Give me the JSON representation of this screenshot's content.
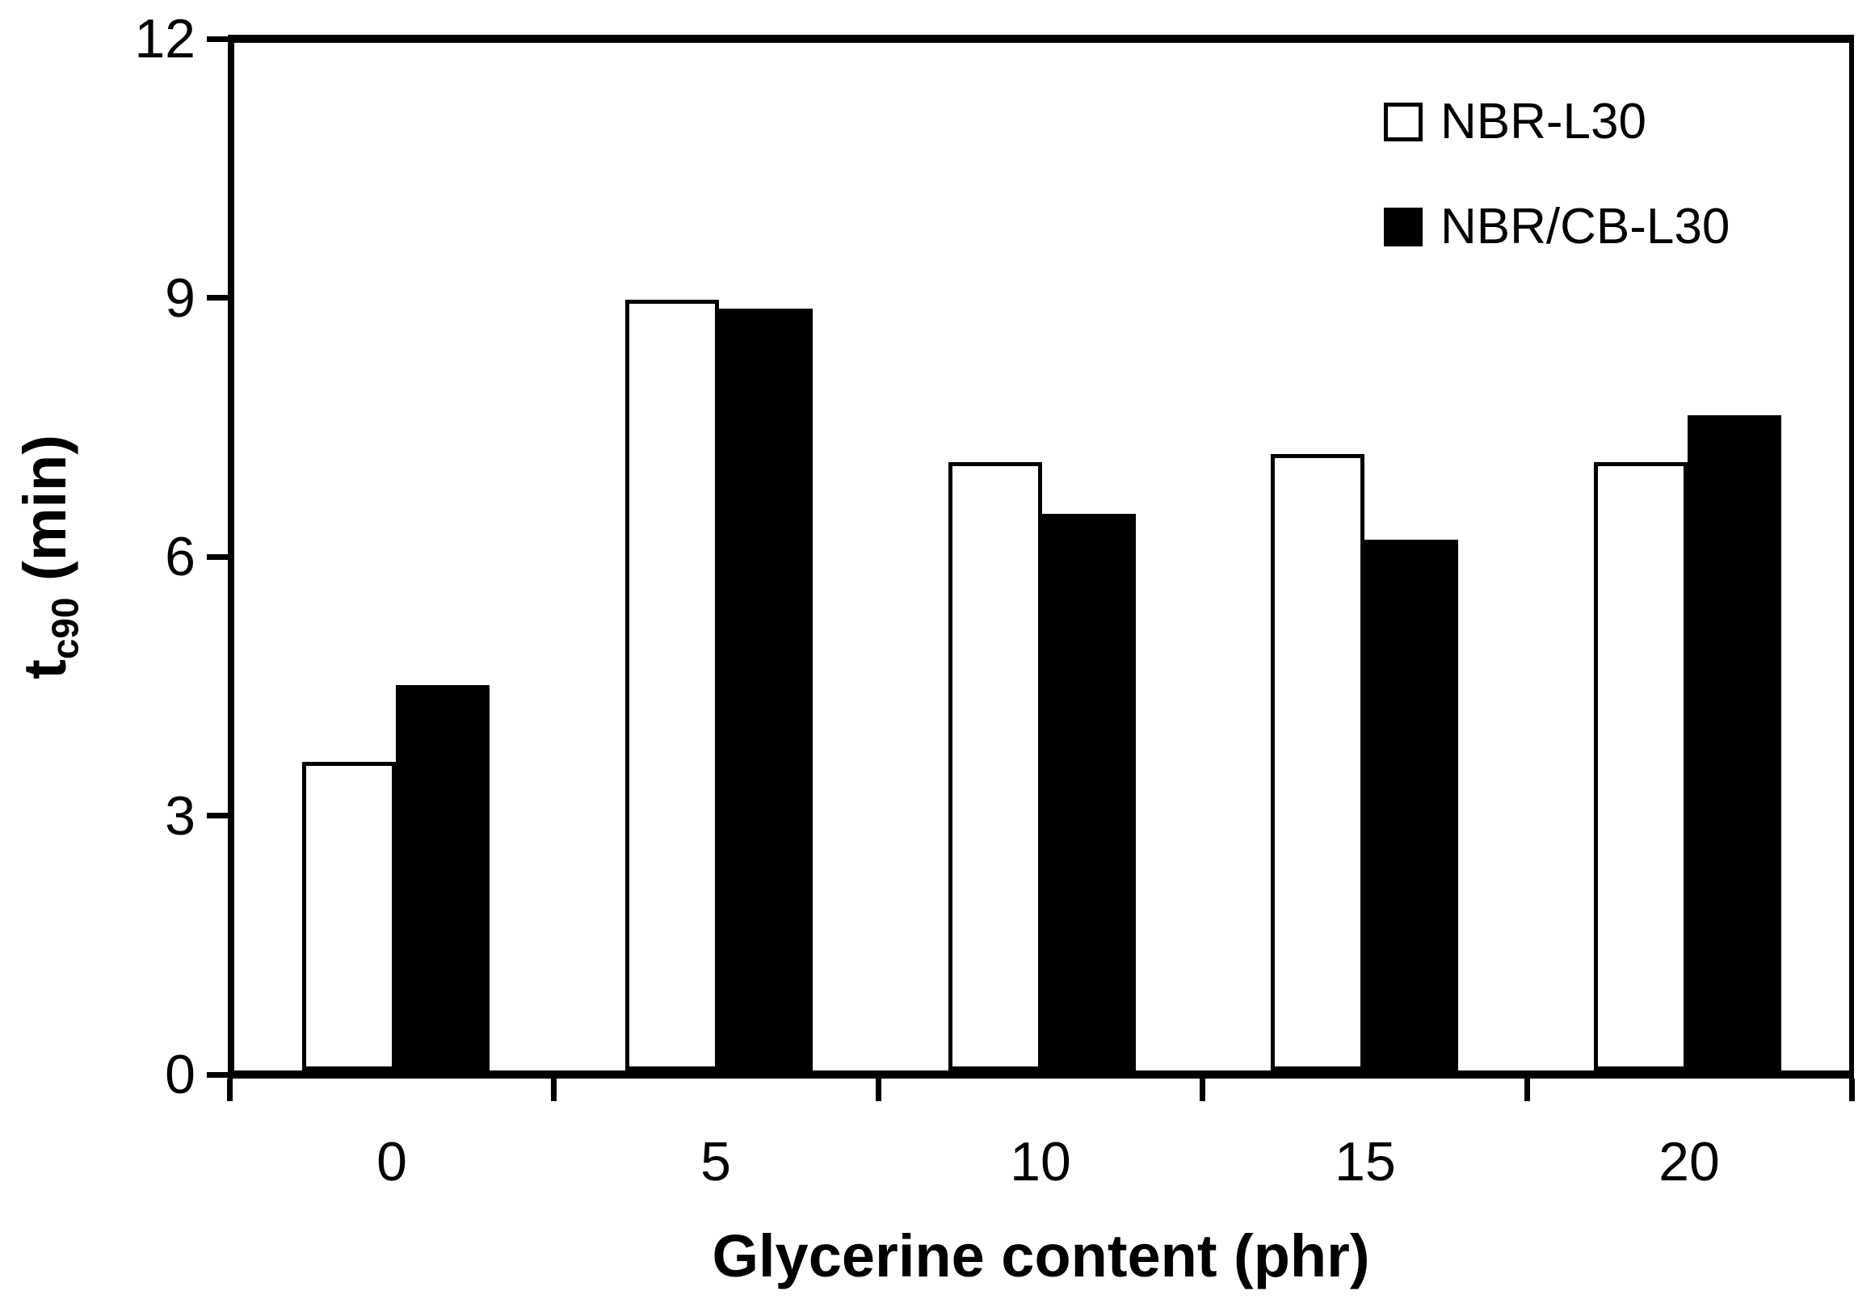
{
  "figure": {
    "background": "#ffffff",
    "frame_color": "#000000"
  },
  "legend": {
    "items": [
      {
        "label": "NBR-L30",
        "fill": "#ffffff"
      },
      {
        "label": "NBR/CB-L30",
        "fill": "#000000"
      }
    ]
  },
  "chart_data": {
    "type": "bar",
    "title": "",
    "categories": [
      "0",
      "5",
      "10",
      "15",
      "20"
    ],
    "series": [
      {
        "name": "NBR-L30",
        "fill": "#ffffff",
        "values": [
          3.6,
          9.0,
          7.1,
          7.2,
          7.1
        ]
      },
      {
        "name": "NBR/CB-L30",
        "fill": "#000000",
        "values": [
          4.5,
          8.9,
          6.5,
          6.2,
          7.65
        ]
      }
    ],
    "xlabel": "Glycerine content (phr)",
    "ylabel": "t_c90 (min)",
    "ylabel_parts": {
      "prefix": "t",
      "sub": "c90",
      "suffix": " (min)"
    },
    "ylim": [
      0,
      12
    ],
    "y_ticks": [
      0,
      3,
      6,
      9,
      12
    ],
    "grid": false,
    "legend_position": "top-right-inside",
    "bar_outline": "#000000"
  }
}
